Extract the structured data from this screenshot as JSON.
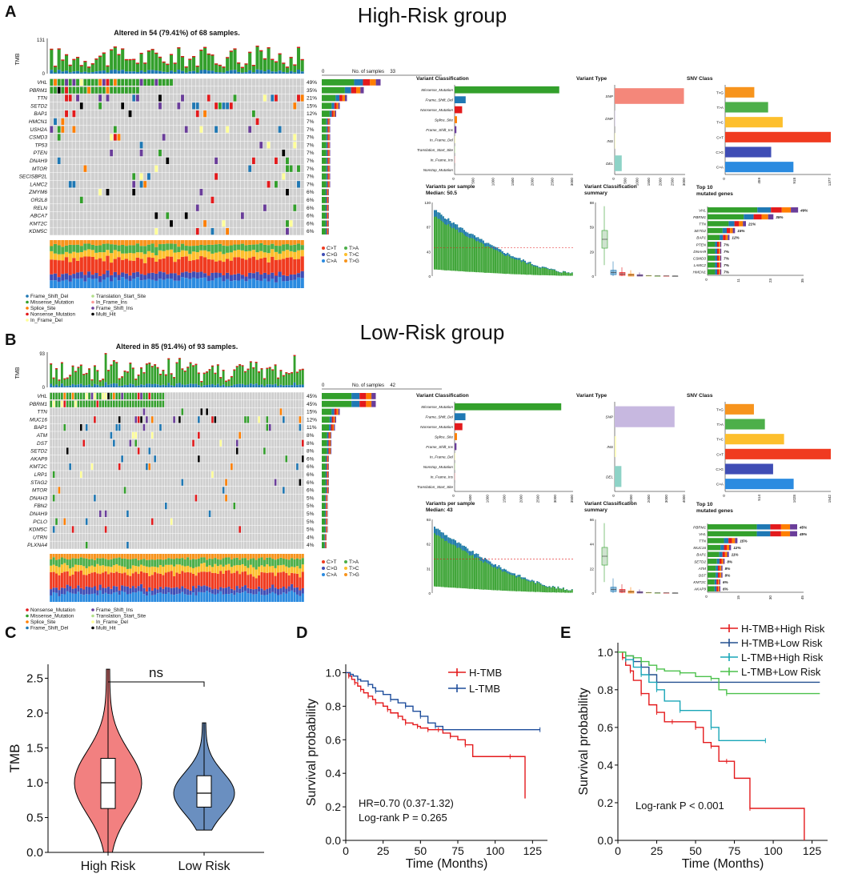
{
  "panels": {
    "a": "A",
    "b": "B",
    "c": "C",
    "d": "D",
    "e": "E"
  },
  "groups": {
    "high_title": "High-Risk group",
    "low_title": "Low-Risk group"
  },
  "colors": {
    "missense": "#33a02c",
    "frame_shift_del": "#1f78b4",
    "splice": "#ff7f00",
    "nonsense": "#e31a1c",
    "in_frame_del": "#ffff99",
    "trans_start": "#b2df8a",
    "in_frame_ins": "#fb9a99",
    "frame_shift_ins": "#6a3d9a",
    "multi_hit": "#000000",
    "none": "#cfcfcf",
    "ct": "#f03b20",
    "tg": "#f7941d",
    "ta": "#4daf4a",
    "tc": "#fdbf2d",
    "cg": "#3f4db5",
    "ca": "#2b8be0",
    "high_risk": "#f28080",
    "low_risk": "#6a8fc0",
    "h_tmb": "#e41a1c",
    "l_tmb": "#1f4e9c",
    "h_high": "#e41a1c",
    "h_low": "#23508f",
    "l_high": "#19a6b8",
    "l_low": "#4cc14c"
  },
  "chart_data": [
    {
      "type": "oncoplot",
      "id": "high_oncoplot",
      "title": "Altered in 54 (79.41%) of 68 samples.",
      "ylabel": "TMB",
      "y_top": "131",
      "y_bottom": "0",
      "genes": [
        "VHL",
        "PBRM1",
        "TTN",
        "SETD2",
        "BAP1",
        "HMCN1",
        "USH2A",
        "CSMD3",
        "TP53",
        "PTEN",
        "DNAH9",
        "MTOR",
        "SECISBP2L",
        "LAMC2",
        "ZMYM6",
        "OR2L8",
        "RELN",
        "ABCA7",
        "KMT2C",
        "KDM5C"
      ],
      "percents": [
        "49%",
        "35%",
        "21%",
        "15%",
        "12%",
        "7%",
        "7%",
        "7%",
        "7%",
        "7%",
        "7%",
        "7%",
        "7%",
        "7%",
        "6%",
        "6%",
        "6%",
        "6%",
        "6%",
        "6%"
      ],
      "n_samples": 68,
      "side_axis_label": "No. of samples",
      "side_axis_min": "0",
      "side_axis_max": "33",
      "titv_legend": [
        "C>T",
        "T>A",
        "C>G",
        "T>C",
        "C>A",
        "T>G"
      ],
      "variant_legend": [
        "Frame_Shift_Del",
        "Translation_Start_Site",
        "Missense_Mutation",
        "In_Frame_Ins",
        "Splice_Site",
        "Frame_Shift_Ins",
        "Nonsense_Mutation",
        "Multi_Hit",
        "In_Frame_Del"
      ]
    },
    {
      "type": "oncoplot",
      "id": "low_oncoplot",
      "title": "Altered in 85 (91.4%) of 93 samples.",
      "ylabel": "TMB",
      "y_top": "93",
      "y_bottom": "0",
      "genes": [
        "VHL",
        "PBRM1",
        "TTN",
        "MUC16",
        "BAP1",
        "ATM",
        "DST",
        "SETD2",
        "AKAP9",
        "KMT2C",
        "LRP1",
        "STAG2",
        "MTOR",
        "DNAH3",
        "FBN2",
        "DNAH9",
        "PCLO",
        "KDM5C",
        "UTRN",
        "PLXNA4"
      ],
      "percents": [
        "45%",
        "45%",
        "15%",
        "12%",
        "11%",
        "8%",
        "8%",
        "8%",
        "6%",
        "6%",
        "6%",
        "6%",
        "6%",
        "5%",
        "5%",
        "5%",
        "5%",
        "5%",
        "4%",
        "4%"
      ],
      "n_samples": 93,
      "side_axis_label": "No. of samples",
      "side_axis_min": "0",
      "side_axis_max": "42",
      "titv_legend": [
        "C>T",
        "T>A",
        "C>G",
        "T>C",
        "C>A",
        "T>G"
      ],
      "variant_legend": [
        "Nonsense_Mutation",
        "Frame_Shift_Ins",
        "Missense_Mutation",
        "Translation_Start_Site",
        "Splice_Site",
        "In_Frame_Del",
        "Frame_Shift_Del",
        "Multi_Hit"
      ]
    },
    {
      "type": "maf_summary",
      "id": "high_summary",
      "vc_title": "Variant Classification",
      "vc_categories": [
        "Missense_Mutation",
        "Frame_Shift_Del",
        "Nonsense_Mutation",
        "Splice_Site",
        "Frame_Shift_Ins",
        "In_Frame_Del",
        "Translation_Start_Site",
        "In_Frame_Ins",
        "Nonstop_Mutation"
      ],
      "vc_values": [
        2650,
        280,
        190,
        60,
        45,
        12,
        6,
        4,
        2
      ],
      "vc_ticks": [
        "0",
        "500",
        "1000",
        "1500",
        "2000",
        "2500",
        "3000"
      ],
      "vc_max": 3000,
      "vt_title": "Variant Type",
      "vt_categories": [
        "SNP",
        "DNP",
        "INS",
        "DEL"
      ],
      "vt_values": [
        2950,
        0,
        25,
        300
      ],
      "vt_ticks": [
        "0",
        "500",
        "1000",
        "1500",
        "2000",
        "2500",
        "3000"
      ],
      "vt_max": 3000,
      "snv_title": "SNV Class",
      "snv_categories": [
        "T>G",
        "T>A",
        "T>C",
        "C>T",
        "C>G",
        "C>A"
      ],
      "snv_values": [
        380,
        560,
        750,
        1377,
        600,
        890
      ],
      "snv_ticks": [
        "0",
        "459",
        "918",
        "1377"
      ],
      "snv_max": 1377,
      "vps_title": "Variants per sample",
      "vps_median": "Median: 50.5",
      "vps_ticks": [
        "0",
        "43",
        "87",
        "130"
      ],
      "vps_max": 130,
      "vps_median_value": 50.5,
      "vcs_title": "Variant Classification",
      "vcs_subtitle": "summary",
      "vcs_ticks": [
        "0",
        "29",
        "59",
        "88"
      ],
      "vcs_max": 88,
      "top10_title": "Top 10",
      "top10_subtitle": "mutated genes",
      "top10_genes": [
        "VHL",
        "PBRM1",
        "TTN",
        "SETD2",
        "BAP1",
        "PTEN",
        "DNAH9",
        "CSMD3",
        "LAMC2",
        "HMCN1"
      ],
      "top10_labels": [
        "49%",
        "35%",
        "21%",
        "15%",
        "12%",
        "7%",
        "7%",
        "7%",
        "7%",
        "7%"
      ],
      "top10_values": [
        33,
        24,
        14,
        10,
        8,
        5,
        5,
        5,
        5,
        5
      ],
      "top10_ticks": [
        "0",
        "11",
        "23",
        "35"
      ],
      "top10_max": 35
    },
    {
      "type": "maf_summary",
      "id": "low_summary",
      "vc_title": "Variant Classification",
      "vc_categories": [
        "Missense_Mutation",
        "Frame_Shift_Del",
        "Nonsense_Mutation",
        "Splice_Site",
        "Frame_Shift_Ins",
        "In_Frame_Del",
        "Nonstop_Mutation",
        "In_Frame_Ins",
        "Translation_Start_Site"
      ],
      "vc_values": [
        3150,
        320,
        230,
        70,
        55,
        15,
        6,
        4,
        3
      ],
      "vc_ticks": [
        "0",
        "500",
        "1000",
        "1500",
        "2000",
        "2500",
        "3000",
        "3500"
      ],
      "vc_max": 3500,
      "vt_title": "Variant Type",
      "vt_categories": [
        "SNP",
        "INS",
        "DEL"
      ],
      "vt_values": [
        3400,
        80,
        380
      ],
      "vt_ticks": [
        "0",
        "1000",
        "2000",
        "3000",
        "4000"
      ],
      "vt_max": 4000,
      "snv_title": "SNV Class",
      "snv_categories": [
        "T>G",
        "T>A",
        "T>C",
        "C>T",
        "C>G",
        "C>A"
      ],
      "snv_values": [
        420,
        580,
        860,
        1542,
        700,
        1000
      ],
      "snv_ticks": [
        "0",
        "514",
        "1028",
        "1542"
      ],
      "snv_max": 1542,
      "vps_title": "Variants per sample",
      "vps_median": "Median: 43",
      "vps_ticks": [
        "0",
        "31",
        "62",
        "93"
      ],
      "vps_max": 93,
      "vps_median_value": 43,
      "vcs_title": "Variant Classification",
      "vcs_subtitle": "summary",
      "vcs_ticks": [
        "0",
        "22",
        "44",
        "66"
      ],
      "vcs_max": 66,
      "top10_title": "Top 10",
      "top10_subtitle": "mutated genes",
      "top10_genes": [
        "PBRM1",
        "VHL",
        "TTN",
        "MUC16",
        "BAP1",
        "SETD2",
        "ATM",
        "DST",
        "KMT2C",
        "AKAP9"
      ],
      "top10_labels": [
        "45%",
        "45%",
        "15%",
        "12%",
        "11%",
        "8%",
        "8%",
        "8%",
        "6%",
        "6%"
      ],
      "top10_values": [
        42,
        42,
        14,
        11,
        10,
        8,
        7,
        7,
        6,
        6
      ],
      "top10_ticks": [
        "0",
        "15",
        "30",
        "45"
      ],
      "top10_max": 45
    },
    {
      "type": "violin",
      "id": "violin_c",
      "ylabel": "TMB",
      "categories": [
        "High Risk",
        "Low Risk"
      ],
      "median": [
        1.0,
        0.85
      ],
      "q1": [
        0.63,
        0.65
      ],
      "q3": [
        1.35,
        1.1
      ],
      "min": [
        0.0,
        0.32
      ],
      "max": [
        2.63,
        1.86
      ],
      "ylim": [
        0,
        2.7
      ],
      "yticks": [
        "0.0",
        "0.5",
        "1.0",
        "1.5",
        "2.0",
        "2.5"
      ],
      "significance": "ns"
    },
    {
      "type": "line",
      "id": "km_d",
      "xlabel": "Time (Months)",
      "ylabel": "Survival probability",
      "xticks": [
        "0",
        "25",
        "50",
        "75",
        "100",
        "125"
      ],
      "yticks": [
        "0.0",
        "0.2",
        "0.4",
        "0.6",
        "0.8",
        "1.0"
      ],
      "xlim": [
        0,
        135
      ],
      "ylim": [
        0,
        1.05
      ],
      "series": [
        {
          "name": "H-TMB",
          "x": [
            0,
            2,
            4,
            6,
            8,
            10,
            12,
            15,
            18,
            20,
            25,
            28,
            30,
            35,
            38,
            40,
            45,
            48,
            50,
            55,
            60,
            62,
            65,
            70,
            75,
            80,
            85,
            110,
            120
          ],
          "y": [
            1.0,
            0.98,
            0.96,
            0.94,
            0.92,
            0.9,
            0.88,
            0.86,
            0.84,
            0.82,
            0.8,
            0.78,
            0.76,
            0.74,
            0.72,
            0.7,
            0.69,
            0.68,
            0.67,
            0.66,
            0.66,
            0.66,
            0.64,
            0.62,
            0.6,
            0.57,
            0.5,
            0.5,
            0.25
          ]
        },
        {
          "name": "L-TMB",
          "x": [
            0,
            3,
            5,
            8,
            10,
            15,
            18,
            20,
            25,
            30,
            35,
            40,
            45,
            50,
            55,
            60,
            65,
            130
          ],
          "y": [
            1.0,
            0.99,
            0.98,
            0.96,
            0.95,
            0.93,
            0.91,
            0.89,
            0.87,
            0.84,
            0.82,
            0.8,
            0.77,
            0.74,
            0.7,
            0.68,
            0.66,
            0.66
          ]
        }
      ],
      "annotation_hr": "HR=0.70 (0.37-1.32)",
      "annotation_p": "Log-rank P = 0.265"
    },
    {
      "type": "line",
      "id": "km_e",
      "xlabel": "Time (Months)",
      "ylabel": "Survival probability",
      "xticks": [
        "0",
        "25",
        "50",
        "75",
        "100",
        "125"
      ],
      "yticks": [
        "0.0",
        "0.2",
        "0.4",
        "0.6",
        "0.8",
        "1.0"
      ],
      "xlim": [
        0,
        135
      ],
      "ylim": [
        0,
        1.05
      ],
      "series": [
        {
          "name": "H-TMB+High Risk",
          "x": [
            0,
            3,
            5,
            8,
            10,
            15,
            20,
            25,
            30,
            35,
            40,
            50,
            55,
            60,
            65,
            70,
            75,
            85,
            120
          ],
          "y": [
            1.0,
            0.97,
            0.93,
            0.9,
            0.85,
            0.78,
            0.72,
            0.68,
            0.63,
            0.63,
            0.63,
            0.6,
            0.52,
            0.5,
            0.42,
            0.42,
            0.33,
            0.17,
            0.0
          ]
        },
        {
          "name": "H-TMB+Low Risk",
          "x": [
            0,
            5,
            10,
            15,
            20,
            25,
            130
          ],
          "y": [
            1.0,
            0.98,
            0.95,
            0.92,
            0.88,
            0.84,
            0.84
          ]
        },
        {
          "name": "L-TMB+High Risk",
          "x": [
            0,
            5,
            10,
            15,
            20,
            25,
            30,
            40,
            55,
            60,
            65,
            95
          ],
          "y": [
            1.0,
            0.96,
            0.92,
            0.88,
            0.84,
            0.8,
            0.74,
            0.69,
            0.69,
            0.6,
            0.53,
            0.53
          ]
        },
        {
          "name": "L-TMB+Low Risk",
          "x": [
            0,
            5,
            10,
            15,
            20,
            25,
            30,
            40,
            50,
            60,
            65,
            70,
            130
          ],
          "y": [
            1.0,
            0.98,
            0.97,
            0.95,
            0.93,
            0.91,
            0.9,
            0.89,
            0.87,
            0.86,
            0.8,
            0.78,
            0.78
          ]
        }
      ],
      "annotation_p": "Log-rank P < 0.001"
    }
  ]
}
